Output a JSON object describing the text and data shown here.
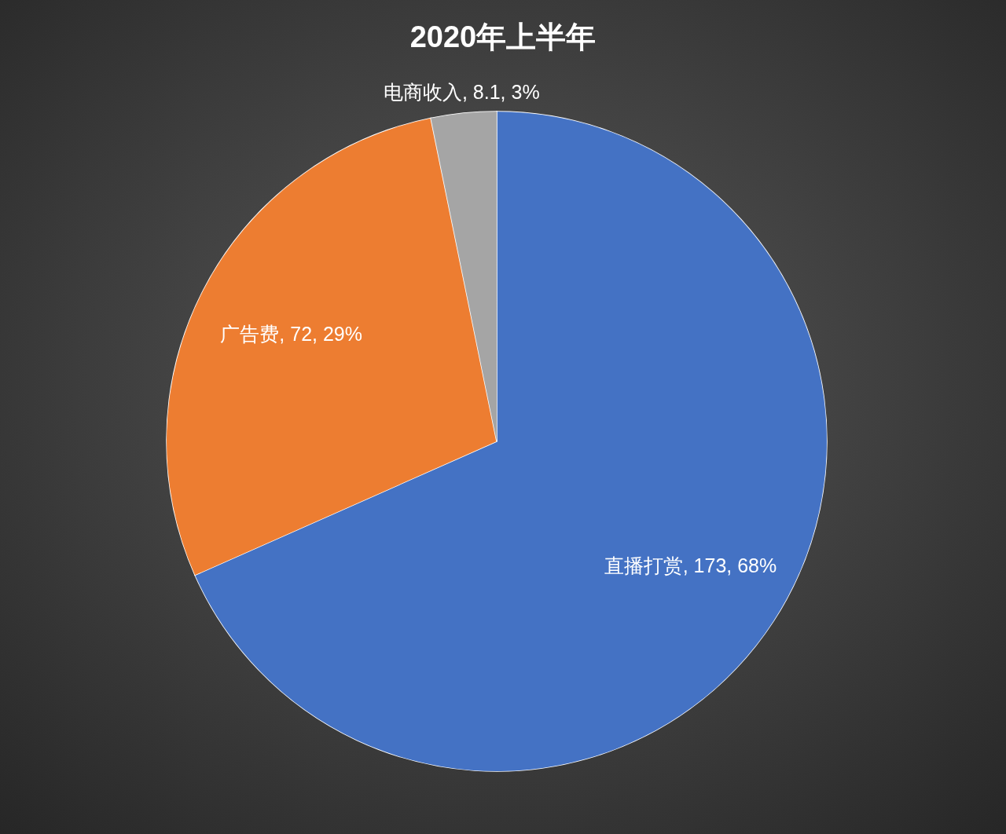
{
  "chart_data": {
    "type": "pie",
    "title": "2020年上半年",
    "categories": [
      "直播打赏",
      "广告费",
      "电商收入"
    ],
    "values": [
      173,
      72,
      8.1
    ],
    "colors": [
      "#4472c4",
      "#ed7d31",
      "#a5a5a5"
    ],
    "value_labels": [
      ", 173, 68%",
      ", 72, 29%",
      ", 8.1, 3%"
    ],
    "legend": false
  }
}
